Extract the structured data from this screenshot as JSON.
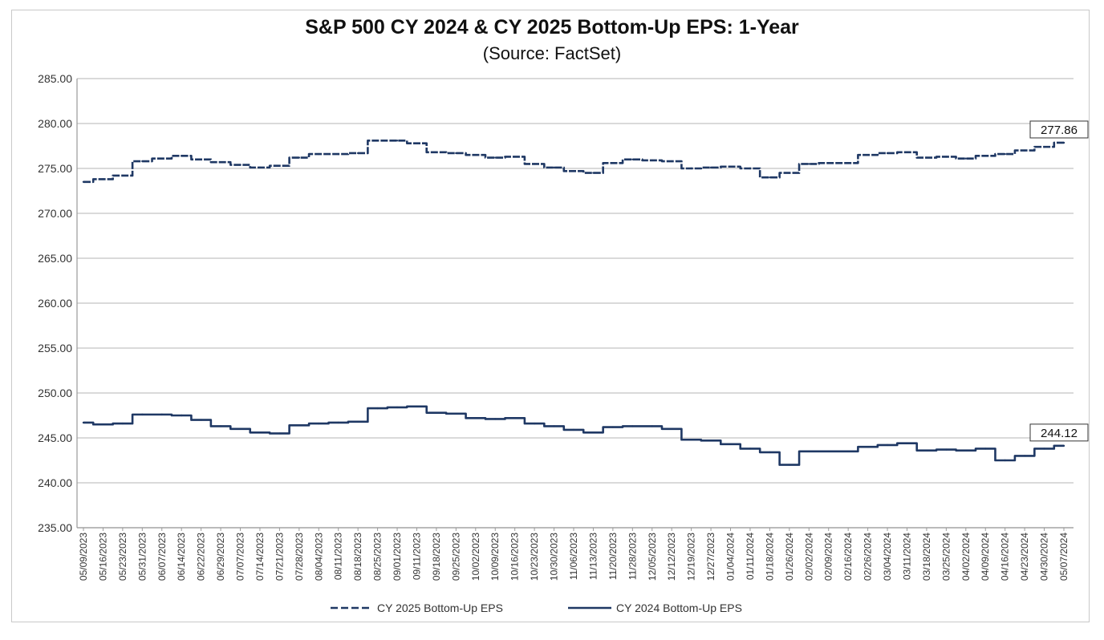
{
  "chart_data": {
    "type": "line",
    "title": "S&P 500 CY 2024 & CY 2025 Bottom-Up EPS: 1-Year",
    "subtitle": "(Source: FactSet)",
    "xlabel": "",
    "ylabel": "",
    "ylim": [
      235,
      285
    ],
    "yticks": [
      "285.00",
      "280.00",
      "275.00",
      "270.00",
      "265.00",
      "260.00",
      "255.00",
      "250.00",
      "245.00",
      "240.00",
      "235.00"
    ],
    "grid": "horizontal",
    "legend": "bottom-center",
    "categories": [
      "05/09/2023",
      "05/16/2023",
      "05/23/2023",
      "05/31/2023",
      "06/07/2023",
      "06/14/2023",
      "06/22/2023",
      "06/29/2023",
      "07/07/2023",
      "07/14/2023",
      "07/21/2023",
      "07/28/2023",
      "08/04/2023",
      "08/11/2023",
      "08/18/2023",
      "08/25/2023",
      "09/01/2023",
      "09/11/2023",
      "09/18/2023",
      "09/25/2023",
      "10/02/2023",
      "10/09/2023",
      "10/16/2023",
      "10/23/2023",
      "10/30/2023",
      "11/06/2023",
      "11/13/2023",
      "11/20/2023",
      "11/28/2023",
      "12/05/2023",
      "12/12/2023",
      "12/19/2023",
      "12/27/2023",
      "01/04/2024",
      "01/11/2024",
      "01/18/2024",
      "01/26/2024",
      "02/02/2024",
      "02/09/2024",
      "02/16/2024",
      "02/26/2024",
      "03/04/2024",
      "03/11/2024",
      "03/18/2024",
      "03/25/2024",
      "04/02/2024",
      "04/09/2024",
      "04/16/2024",
      "04/23/2024",
      "04/30/2024",
      "05/07/2024"
    ],
    "series": [
      {
        "name": "CY 2025 Bottom-Up EPS",
        "style": "dashed",
        "color": "#1f3864",
        "end_label": "277.86",
        "values": [
          273.5,
          273.8,
          274.2,
          275.8,
          276.1,
          276.4,
          276.0,
          275.7,
          275.4,
          275.1,
          275.3,
          276.2,
          276.6,
          276.6,
          276.7,
          278.1,
          278.1,
          277.8,
          276.8,
          276.7,
          276.5,
          276.2,
          276.3,
          275.5,
          275.1,
          274.7,
          274.5,
          275.6,
          276.0,
          275.9,
          275.8,
          275.0,
          275.1,
          275.2,
          275.0,
          274.0,
          274.5,
          275.5,
          275.6,
          275.6,
          276.5,
          276.7,
          276.8,
          276.2,
          276.3,
          276.1,
          276.4,
          276.6,
          277.0,
          277.4,
          277.86
        ]
      },
      {
        "name": "CY 2024 Bottom-Up EPS",
        "style": "solid",
        "color": "#1f3864",
        "end_label": "244.12",
        "values": [
          246.7,
          246.5,
          246.6,
          247.6,
          247.6,
          247.5,
          247.0,
          246.3,
          246.0,
          245.6,
          245.5,
          246.4,
          246.6,
          246.7,
          246.8,
          248.3,
          248.4,
          248.5,
          247.8,
          247.7,
          247.2,
          247.1,
          247.2,
          246.6,
          246.3,
          245.9,
          245.6,
          246.2,
          246.3,
          246.3,
          246.0,
          244.8,
          244.7,
          244.3,
          243.8,
          243.4,
          242.0,
          243.5,
          243.5,
          243.5,
          244.0,
          244.2,
          244.4,
          243.6,
          243.7,
          243.6,
          243.8,
          242.5,
          243.0,
          243.8,
          244.12
        ]
      }
    ]
  }
}
